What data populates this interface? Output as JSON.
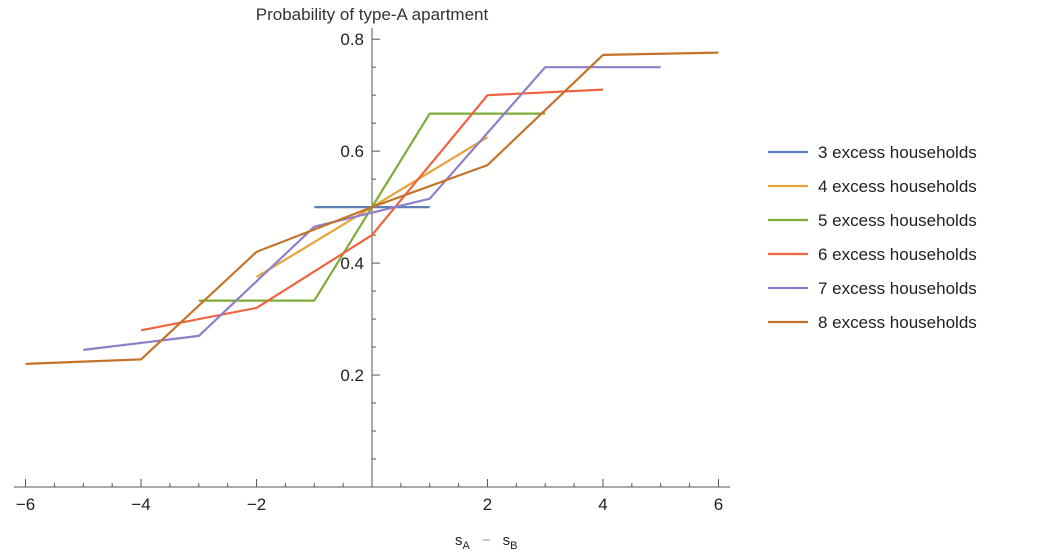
{
  "chart_data": {
    "type": "line",
    "title": "Probability of type-A apartment",
    "xlabel_parts": [
      "s",
      "A",
      "−",
      "s",
      "B"
    ],
    "xlim": [
      -6.2,
      6.2
    ],
    "ylim": [
      0.0,
      0.82
    ],
    "x_ticks": [
      -6,
      -4,
      -2,
      2,
      4,
      6
    ],
    "x_tick_labels": [
      "−6",
      "−4",
      "−2",
      "2",
      "4",
      "6"
    ],
    "y_ticks": [
      0.2,
      0.4,
      0.6,
      0.8
    ],
    "y_tick_labels": [
      "0.2",
      "0.4",
      "0.6",
      "0.8"
    ],
    "grid": false,
    "legend_position": "right",
    "series": [
      {
        "name": "3 excess households",
        "color": "#5d80b8",
        "points": [
          [
            -1,
            0.5
          ],
          [
            0,
            0.5
          ],
          [
            1,
            0.5
          ]
        ]
      },
      {
        "name": "4 excess households",
        "color": "#e8a33a",
        "points": [
          [
            -2,
            0.375
          ],
          [
            0,
            0.5
          ],
          [
            2,
            0.625
          ]
        ]
      },
      {
        "name": "5 excess households",
        "color": "#7fac39",
        "points": [
          [
            -3,
            0.333
          ],
          [
            -1,
            0.333
          ],
          [
            0,
            0.5
          ],
          [
            1,
            0.667
          ],
          [
            3,
            0.667
          ]
        ]
      },
      {
        "name": "6 excess households",
        "color": "#f0633f",
        "points": [
          [
            -4,
            0.28
          ],
          [
            -2,
            0.32
          ],
          [
            0,
            0.45
          ],
          [
            2,
            0.7
          ],
          [
            4,
            0.71
          ]
        ]
      },
      {
        "name": "7 excess households",
        "color": "#8f7fc9",
        "points": [
          [
            -5,
            0.245
          ],
          [
            -3,
            0.27
          ],
          [
            -1,
            0.465
          ],
          [
            1,
            0.515
          ],
          [
            3,
            0.75
          ],
          [
            5,
            0.75
          ]
        ]
      },
      {
        "name": "8 excess households",
        "color": "#c4742a",
        "points": [
          [
            -6,
            0.22
          ],
          [
            -4,
            0.228
          ],
          [
            -2,
            0.42
          ],
          [
            0,
            0.5
          ],
          [
            2,
            0.575
          ],
          [
            4,
            0.772
          ],
          [
            6,
            0.776
          ]
        ]
      }
    ]
  }
}
